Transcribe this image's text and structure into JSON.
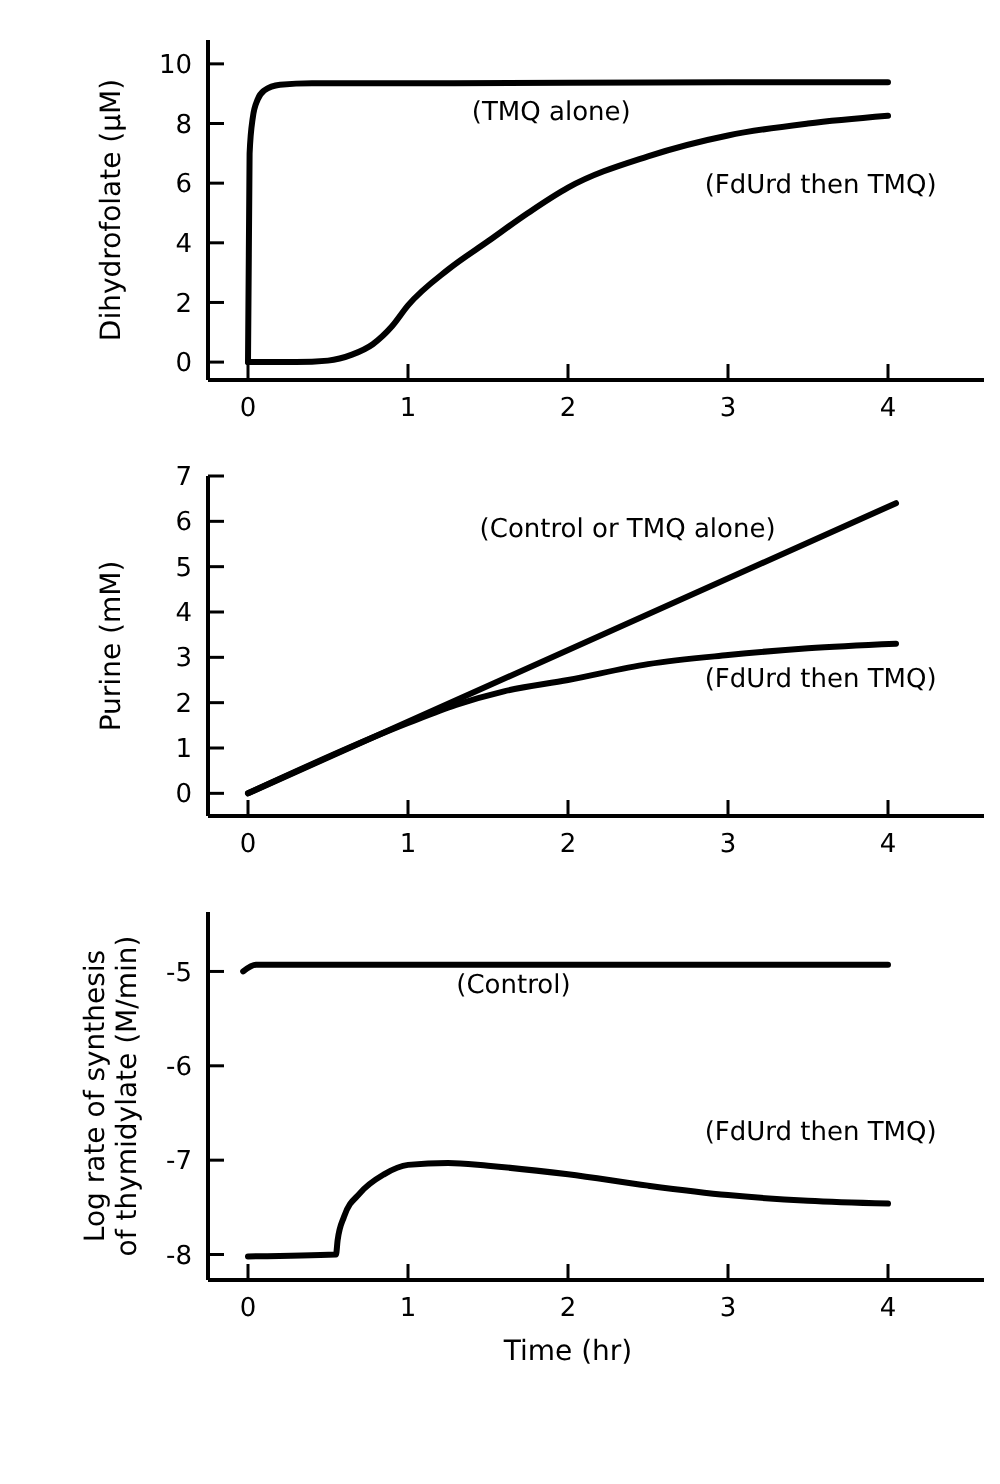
{
  "chart_data": [
    {
      "type": "line",
      "ylabel": "Dihydrofolate (μM)",
      "xlim": [
        -0.25,
        4.6
      ],
      "ylim": [
        -0.6,
        10.8
      ],
      "xticks": [
        0,
        1,
        2,
        3,
        4
      ],
      "yticks": [
        0,
        2,
        4,
        6,
        8,
        10
      ],
      "grid": false,
      "marker": "none",
      "line_style": "solid",
      "series": [
        {
          "name": "(TMQ alone)",
          "color": "#000000",
          "x": [
            0,
            0.01,
            0.03,
            0.06,
            0.1,
            0.2,
            0.4,
            1,
            2,
            3,
            4
          ],
          "values": [
            0,
            7,
            8.2,
            8.8,
            9.1,
            9.3,
            9.35,
            9.35,
            9.37,
            9.38,
            9.38
          ]
        },
        {
          "name": "(FdUrd then TMQ)",
          "color": "#000000",
          "x": [
            0,
            0.3,
            0.5,
            0.65,
            0.78,
            0.9,
            1,
            1.25,
            1.5,
            1.75,
            2,
            2.5,
            3,
            3.5,
            4
          ],
          "values": [
            0,
            0,
            0.05,
            0.25,
            0.6,
            1.2,
            1.9,
            3.1,
            4.05,
            5.0,
            5.85,
            6.9,
            7.6,
            8.0,
            8.26
          ]
        }
      ]
    },
    {
      "type": "line",
      "ylabel": "Purine (mM)",
      "xlim": [
        -0.25,
        4.6
      ],
      "ylim": [
        -0.5,
        7
      ],
      "xticks": [
        0,
        1,
        2,
        3,
        4
      ],
      "yticks": [
        0,
        1,
        2,
        3,
        4,
        5,
        6,
        7
      ],
      "grid": false,
      "marker": "none",
      "line_style": "solid",
      "series": [
        {
          "name": "(Control or TMQ alone)",
          "color": "#000000",
          "x": [
            0,
            4.05
          ],
          "values": [
            0,
            6.4
          ]
        },
        {
          "name": "(FdUrd then TMQ)",
          "color": "#000000",
          "x": [
            0,
            1,
            1.3,
            1.6,
            2,
            2.5,
            3,
            3.5,
            4.05
          ],
          "values": [
            0,
            1.55,
            1.95,
            2.25,
            2.5,
            2.85,
            3.05,
            3.2,
            3.3
          ]
        }
      ]
    },
    {
      "type": "line",
      "xlabel": "Time (hr)",
      "ylabel": "Log rate of synthesis\nof thymidylate (M/min)",
      "xlim": [
        -0.25,
        4.6
      ],
      "ylim": [
        -8.27,
        -4.37
      ],
      "xticks": [
        0,
        1,
        2,
        3,
        4
      ],
      "yticks": [
        -5,
        -6,
        -7,
        -8
      ],
      "grid": false,
      "marker": "none",
      "line_style": "solid",
      "series": [
        {
          "name": "(Control)",
          "color": "#000000",
          "x": [
            -0.03,
            0.05,
            1,
            2,
            3,
            4
          ],
          "values": [
            -5.0,
            -4.93,
            -4.93,
            -4.93,
            -4.93,
            -4.93
          ]
        },
        {
          "name": "(FdUrd then TMQ)",
          "color": "#000000",
          "x": [
            0,
            0.55,
            0.56,
            0.6,
            0.7,
            0.85,
            1,
            1.25,
            1.5,
            2,
            2.5,
            3,
            3.5,
            4
          ],
          "values": [
            -8.02,
            -8.0,
            -7.85,
            -7.6,
            -7.35,
            -7.15,
            -7.05,
            -7.03,
            -7.06,
            -7.15,
            -7.27,
            -7.37,
            -7.43,
            -7.46
          ]
        }
      ]
    }
  ]
}
